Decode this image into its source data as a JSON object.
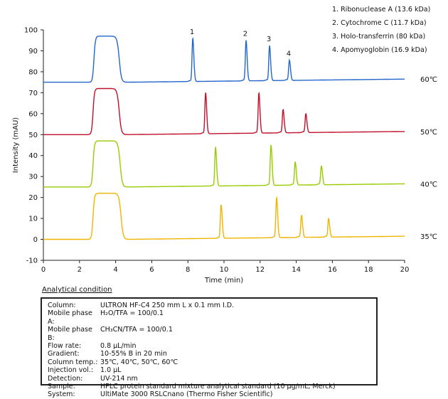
{
  "chart_data": {
    "type": "line",
    "xlabel": "Time (min)",
    "ylabel": "Intensity (mAU)",
    "xlim": [
      0,
      20
    ],
    "ylim": [
      -10,
      100
    ],
    "xticks": [
      "0",
      "2",
      "4",
      "6",
      "8",
      "10",
      "12",
      "14",
      "16",
      "18",
      "20"
    ],
    "yticks": [
      "-10",
      "0",
      "10",
      "20",
      "30",
      "40",
      "50",
      "60",
      "70",
      "80",
      "90",
      "100"
    ],
    "peak_labels": [
      "1",
      "2",
      "3",
      "4"
    ],
    "legend": [
      "1. Ribonuclease A (13.6 kDa)",
      "2. Cytochrome C (11.7 kDa)",
      "3. Holo-transferrin (80 kDa)",
      "4. Apomyoglobin (16.9 kDa)"
    ],
    "series": [
      {
        "name": "60℃",
        "color": "#2266cc",
        "baseline": 75,
        "end_baseline": 76.5,
        "plateau": 97,
        "plateau_start": 2.8,
        "plateau_end": 4.2,
        "peaks": [
          {
            "t": 8.27,
            "h": 96
          },
          {
            "t": 11.22,
            "h": 95
          },
          {
            "t": 12.52,
            "h": 92.5
          },
          {
            "t": 13.62,
            "h": 85.5
          }
        ]
      },
      {
        "name": "50℃",
        "color": "#c0102a",
        "baseline": 50,
        "end_baseline": 51.5,
        "plateau": 72,
        "plateau_start": 2.75,
        "plateau_end": 4.2,
        "peaks": [
          {
            "t": 8.98,
            "h": 70
          },
          {
            "t": 11.93,
            "h": 70
          },
          {
            "t": 13.27,
            "h": 62
          },
          {
            "t": 14.53,
            "h": 60
          }
        ]
      },
      {
        "name": "40℃",
        "color": "#99cc00",
        "baseline": 25,
        "end_baseline": 26.5,
        "plateau": 47,
        "plateau_start": 2.75,
        "plateau_end": 4.25,
        "peaks": [
          {
            "t": 9.53,
            "h": 44
          },
          {
            "t": 12.6,
            "h": 45
          },
          {
            "t": 13.94,
            "h": 37
          },
          {
            "t": 15.39,
            "h": 35
          }
        ]
      },
      {
        "name": "35℃",
        "color": "#f0b400",
        "baseline": 0,
        "end_baseline": 1.5,
        "plateau": 22,
        "plateau_start": 2.75,
        "plateau_end": 4.3,
        "peaks": [
          {
            "t": 9.84,
            "h": 16.5
          },
          {
            "t": 12.91,
            "h": 20
          },
          {
            "t": 14.29,
            "h": 11.5
          },
          {
            "t": 15.79,
            "h": 10
          }
        ]
      }
    ]
  },
  "condition": {
    "title": "Analytical condition",
    "rows": [
      {
        "k": "Column:",
        "v": "ULTRON HF-C4  250 mm L x 0.1 mm I.D."
      },
      {
        "k": "Mobile phase A:",
        "v": "H₂O/TFA = 100/0.1"
      },
      {
        "k": "Mobile phase B:",
        "v": "CH₃CN/TFA = 100/0.1"
      },
      {
        "k": "Flow rate:",
        "v": "0.8 µL/min"
      },
      {
        "k": "Gradient:",
        "v": "10-55% B in 20 min"
      },
      {
        "k": "Column temp.:",
        "v": "35℃, 40℃, 50℃, 60℃"
      },
      {
        "k": "Injection vol.:",
        "v": "1.0 µL"
      },
      {
        "k": "Detection:",
        "v": "UV-214 nm"
      },
      {
        "k": "Sample:",
        "v": "HPLC protein standard mixture analytical standard (10 µg/mL, Merck)"
      },
      {
        "k": "System:",
        "v": "UltiMate 3000 RSLCnano (Thermo Fisher Scientific)"
      }
    ]
  }
}
